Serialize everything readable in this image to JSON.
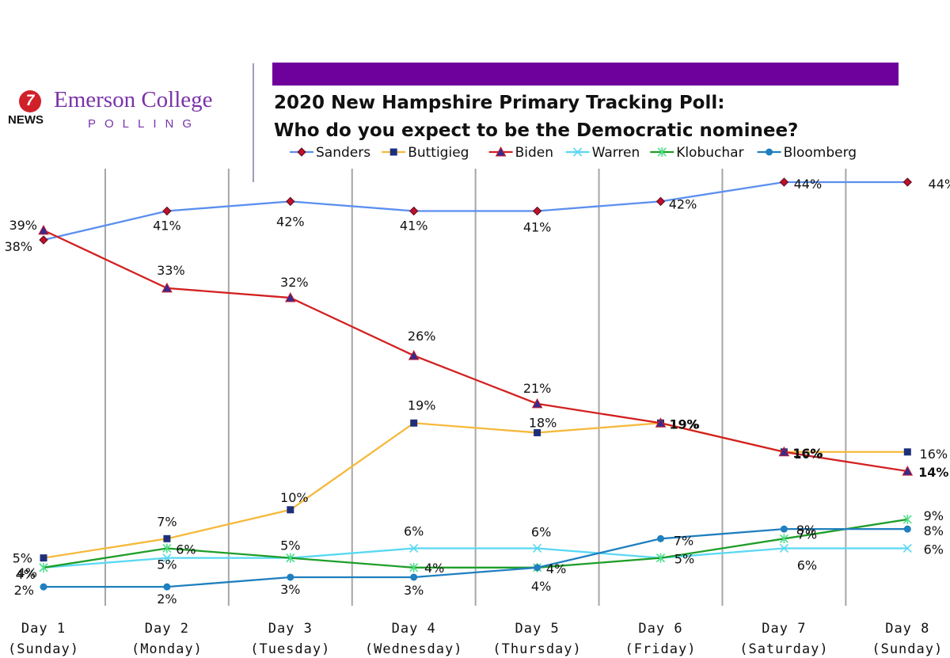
{
  "logo": {
    "badge": "7",
    "news": "NEWS",
    "name": "Emerson College",
    "sub": "POLLING"
  },
  "colors": {
    "title_bar": "#6e009c",
    "Sanders": "#5b8ff0",
    "Buttigieg": "#f5b93b",
    "Biden": "#d32020",
    "Warren": "#5ad8f2",
    "Klobuchar": "#1f9e2a",
    "Bloomberg": "#1f7fbf"
  },
  "chart_data": {
    "type": "line",
    "title": "2020 New Hampshire Primary Tracking Poll:",
    "subtitle": "Who do you expect to be the Democratic nominee?",
    "xlabel": "",
    "ylabel": "",
    "ylim": [
      0,
      47
    ],
    "grid": "vertical lines between days",
    "legend": "top",
    "categories": [
      [
        "Day 1",
        "(Sunday)"
      ],
      [
        "Day 2",
        "(Monday)"
      ],
      [
        "Day 3",
        "(Tuesday)"
      ],
      [
        "Day 4",
        "(Wednesday)"
      ],
      [
        "Day 5",
        "(Thursday)"
      ],
      [
        "Day 6",
        "(Friday)"
      ],
      [
        "Day 7",
        "(Saturday)"
      ],
      [
        "Day 8",
        "(Sunday)"
      ]
    ],
    "series": [
      {
        "name": "Sanders",
        "marker": "diamond",
        "values": [
          38,
          41,
          42,
          41,
          41,
          42,
          44,
          44
        ]
      },
      {
        "name": "Buttigieg",
        "marker": "square",
        "values": [
          5,
          7,
          10,
          19,
          18,
          19,
          16,
          16
        ]
      },
      {
        "name": "Biden",
        "marker": "triangle",
        "values": [
          39,
          33,
          32,
          26,
          21,
          19,
          16,
          14
        ]
      },
      {
        "name": "Warren",
        "marker": "x",
        "values": [
          4,
          5,
          5,
          6,
          6,
          5,
          6,
          6
        ]
      },
      {
        "name": "Klobuchar",
        "marker": "star",
        "values": [
          4,
          6,
          5,
          4,
          4,
          5,
          7,
          9
        ]
      },
      {
        "name": "Bloomberg",
        "marker": "circle",
        "values": [
          2,
          2,
          3,
          3,
          4,
          7,
          8,
          8
        ]
      }
    ]
  }
}
